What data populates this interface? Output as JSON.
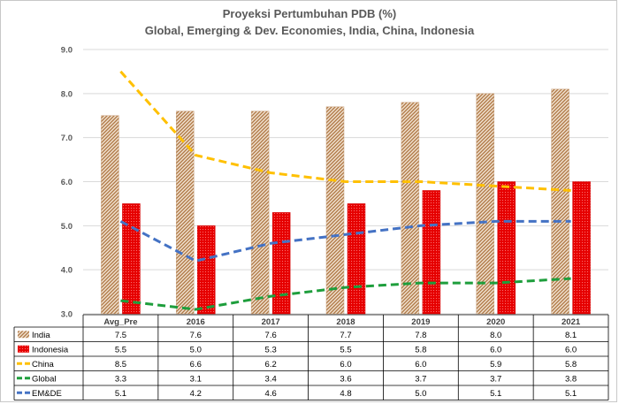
{
  "chart_data": {
    "type": "bar",
    "title": "Proyeksi Pertumbuhan  PDB (%)",
    "subtitle": "Global,  Emerging & Dev. Economies,  India,  China,  Indonesia",
    "categories": [
      "Avg_Pre",
      "2016",
      "2017",
      "2018",
      "2019",
      "2020",
      "2021"
    ],
    "ylim": [
      3.0,
      9.0
    ],
    "yticks": [
      "3.0",
      "4.0",
      "5.0",
      "6.0",
      "7.0",
      "8.0",
      "9.0"
    ],
    "grid": true,
    "legend": "data table rows below chart",
    "series": [
      {
        "name": "India",
        "kind": "bar",
        "color": "#c08a5a",
        "pattern": "diagonal-hatch",
        "values": [
          7.5,
          7.6,
          7.6,
          7.7,
          7.8,
          8.0,
          8.1
        ]
      },
      {
        "name": "Indonesia",
        "kind": "bar",
        "color": "#e60000",
        "pattern": "dotted",
        "values": [
          5.5,
          5.0,
          5.3,
          5.5,
          5.8,
          6.0,
          6.0
        ]
      },
      {
        "name": "China",
        "kind": "line",
        "color": "#ffc000",
        "dash": "dashed",
        "values": [
          8.5,
          6.6,
          6.2,
          6.0,
          6.0,
          5.9,
          5.8
        ]
      },
      {
        "name": "Global",
        "kind": "line",
        "color": "#1e9e3c",
        "dash": "dashed",
        "values": [
          3.3,
          3.1,
          3.4,
          3.6,
          3.7,
          3.7,
          3.8
        ]
      },
      {
        "name": "EM&DE",
        "kind": "line",
        "color": "#4472c4",
        "dash": "dashed",
        "values": [
          5.1,
          4.2,
          4.6,
          4.8,
          5.0,
          5.1,
          5.1
        ]
      }
    ],
    "table_values": [
      [
        "7.5",
        "7.6",
        "7.6",
        "7.7",
        "7.8",
        "8.0",
        "8.1"
      ],
      [
        "5.5",
        "5.0",
        "5.3",
        "5.5",
        "5.8",
        "6.0",
        "6.0"
      ],
      [
        "8.5",
        "6.6",
        "6.2",
        "6.0",
        "6.0",
        "5.9",
        "5.8"
      ],
      [
        "3.3",
        "3.1",
        "3.4",
        "3.6",
        "3.7",
        "3.7",
        "3.8"
      ],
      [
        "5.1",
        "4.2",
        "4.6",
        "4.8",
        "5.0",
        "5.1",
        "5.1"
      ]
    ]
  }
}
